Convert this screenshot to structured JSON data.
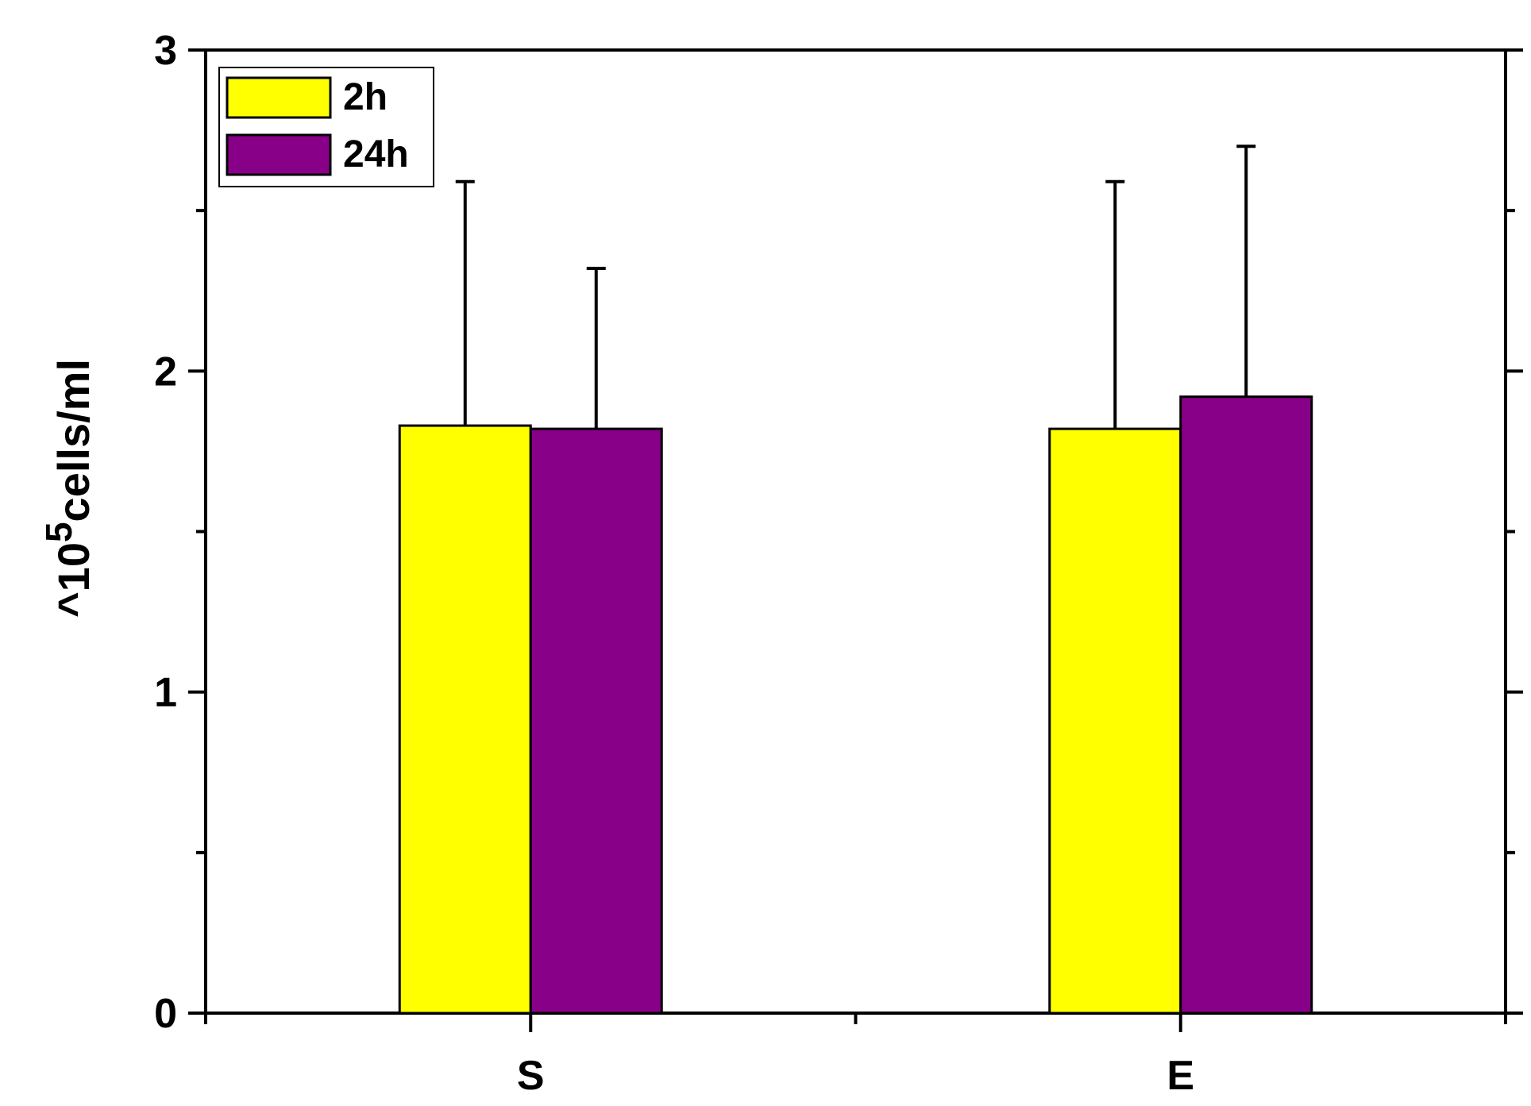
{
  "chart_data": {
    "type": "bar",
    "categories": [
      "S",
      "E"
    ],
    "series": [
      {
        "name": "2h",
        "color": "#FFFF00",
        "values": [
          1.83,
          1.82
        ],
        "errors": [
          0.76,
          0.77
        ]
      },
      {
        "name": "24h",
        "color": "#880088",
        "values": [
          1.82,
          1.92
        ],
        "errors": [
          0.5,
          0.78
        ]
      }
    ],
    "ylabel": "10",
    "ylabel_exponent": "5",
    "ylabel_suffix": "cells/ml",
    "ylabel_prefix": "^",
    "ylim": [
      0,
      3
    ],
    "yticks": [
      "0",
      "1",
      "2",
      "3"
    ],
    "legend_position": "top-left",
    "grid": false
  }
}
